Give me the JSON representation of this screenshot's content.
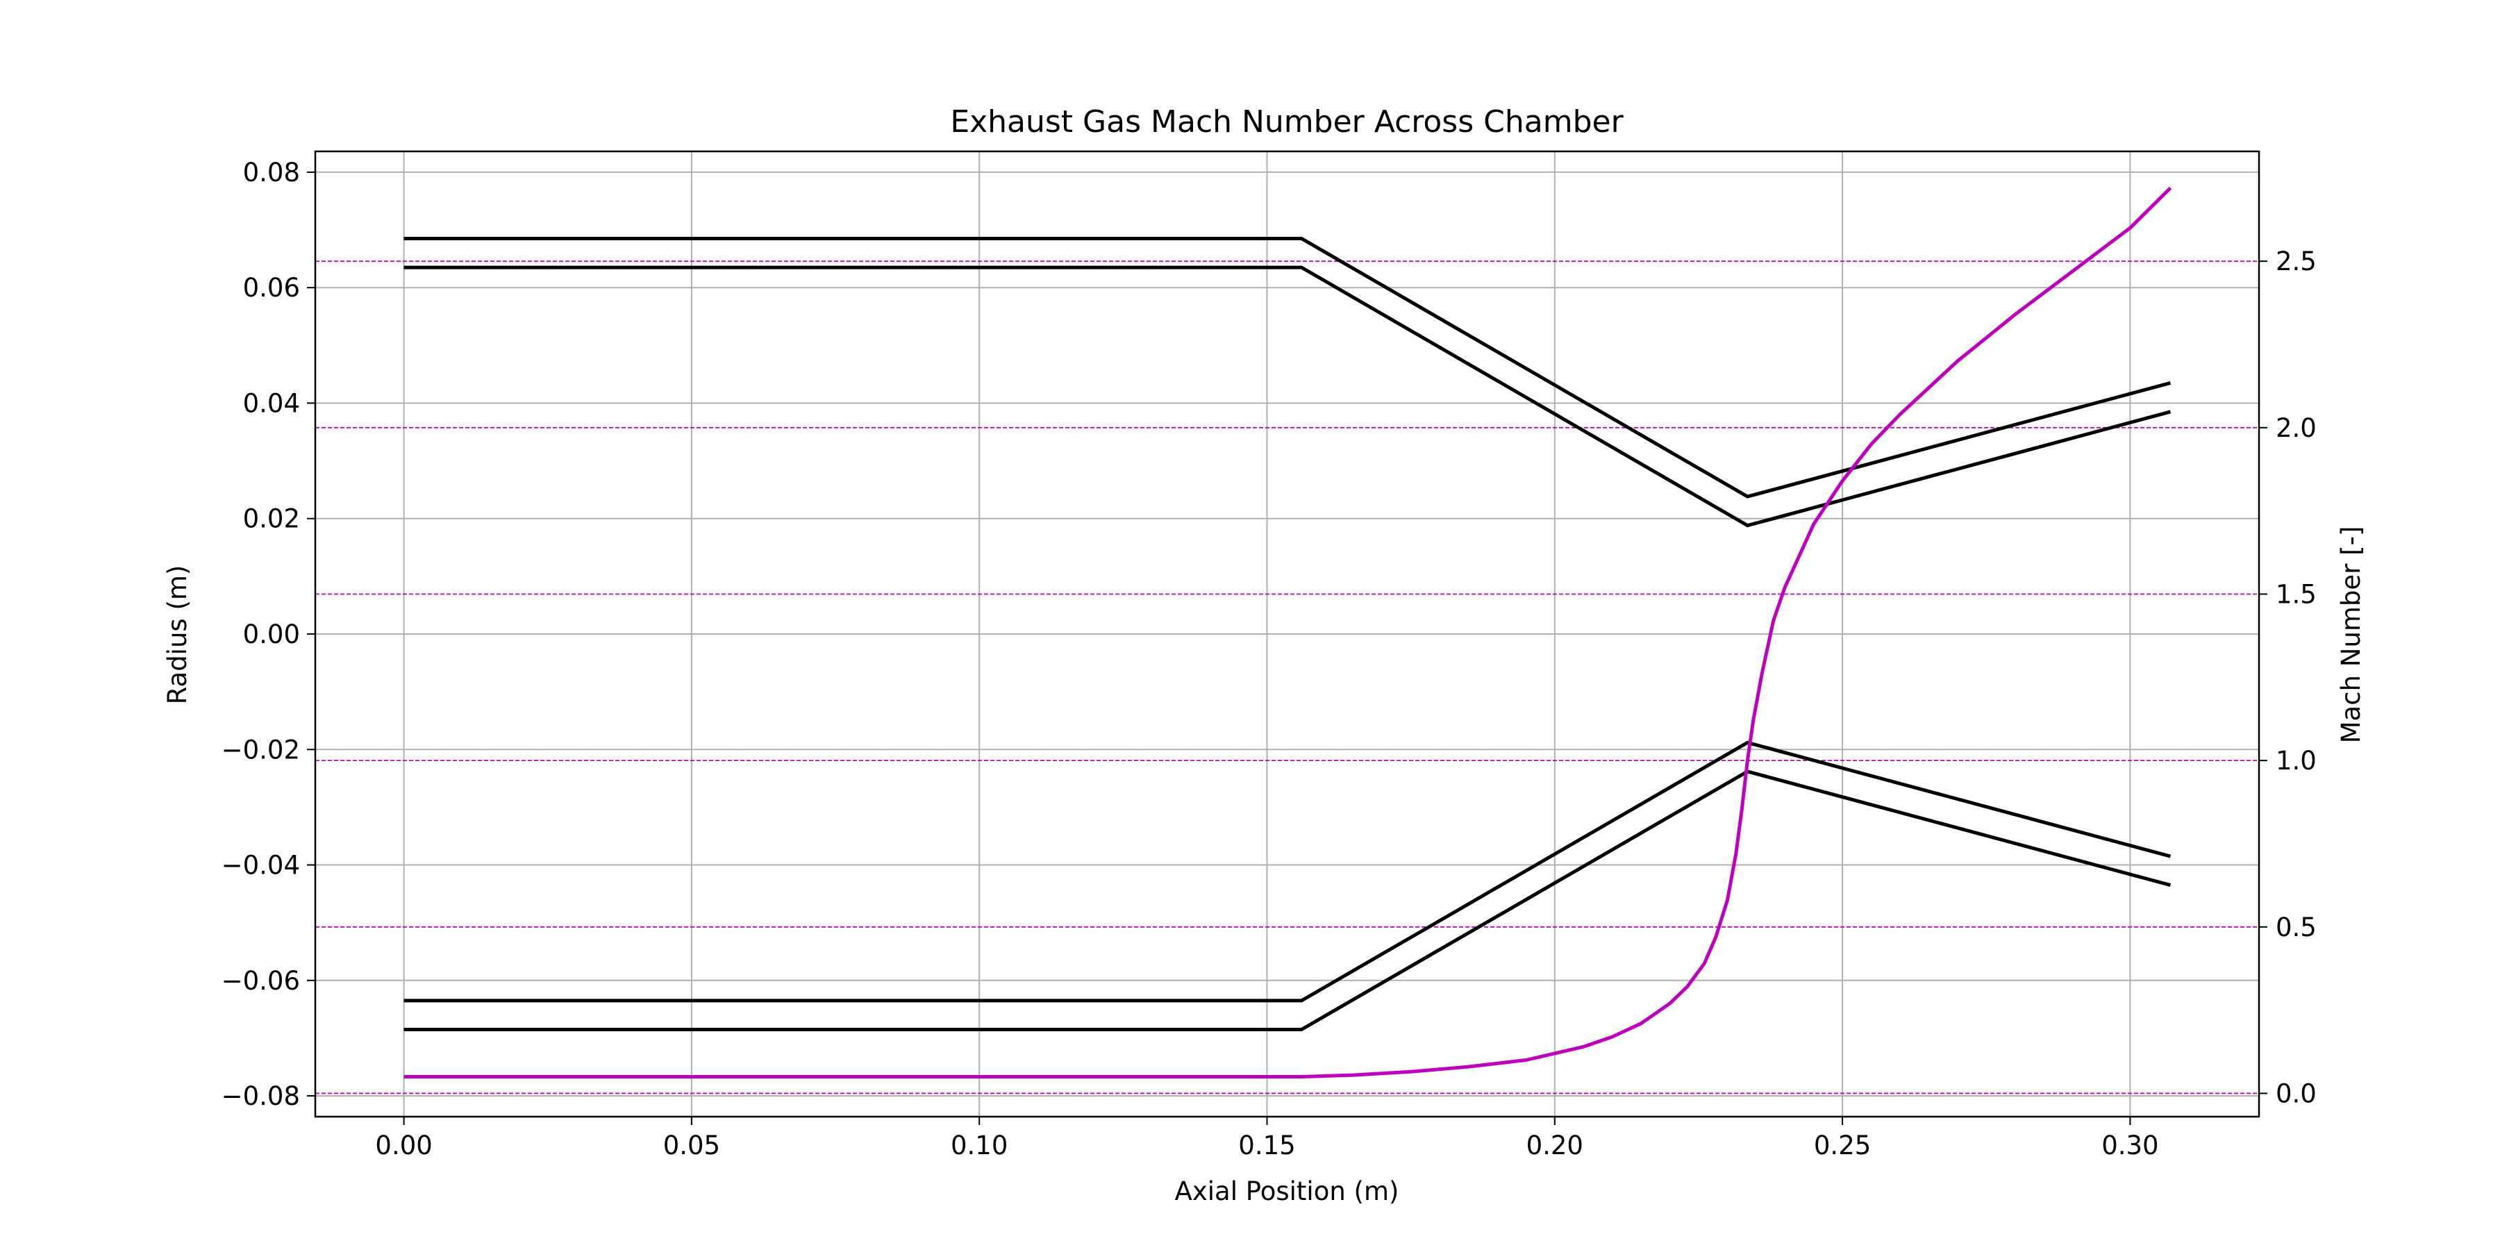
{
  "chart_data": {
    "type": "line",
    "title": "Exhaust Gas Mach Number Across Chamber",
    "xlabel": "Axial Position (m)",
    "ylabel": "Radius (m)",
    "y2label": "Mach Number [-]",
    "xlim": [
      -0.0154,
      0.3224
    ],
    "ylim": [
      -0.0836,
      0.0836
    ],
    "y2lim": [
      -0.07,
      2.83
    ],
    "x_ticks": [
      0.0,
      0.05,
      0.1,
      0.15,
      0.2,
      0.25,
      0.3
    ],
    "x_tick_labels": [
      "0.00",
      "0.05",
      "0.10",
      "0.15",
      "0.20",
      "0.25",
      "0.30"
    ],
    "y_ticks": [
      -0.08,
      -0.06,
      -0.04,
      -0.02,
      0.0,
      0.02,
      0.04,
      0.06,
      0.08
    ],
    "y_tick_labels": [
      "−0.08",
      "−0.06",
      "−0.04",
      "−0.02",
      "0.00",
      "0.02",
      "0.04",
      "0.06",
      "0.08"
    ],
    "y2_ticks": [
      0.0,
      0.5,
      1.0,
      1.5,
      2.0,
      2.5
    ],
    "y2_tick_labels": [
      "0.0",
      "0.5",
      "1.0",
      "1.5",
      "2.0",
      "2.5"
    ],
    "grid": true,
    "colors": {
      "wall": "#000000",
      "mach": "#bf00bf",
      "grid": "#b0b0b0"
    },
    "wall_series": [
      {
        "x": [
          0.0,
          0.156,
          0.2335,
          0.307
        ],
        "y": [
          0.0685,
          0.0685,
          0.0238,
          0.0435
        ]
      },
      {
        "x": [
          0.0,
          0.156,
          0.2335,
          0.307
        ],
        "y": [
          0.0635,
          0.0635,
          0.0188,
          0.0385
        ]
      },
      {
        "x": [
          0.0,
          0.156,
          0.2335,
          0.307
        ],
        "y": [
          -0.0635,
          -0.0635,
          -0.0188,
          -0.0385
        ]
      },
      {
        "x": [
          0.0,
          0.156,
          0.2335,
          0.307
        ],
        "y": [
          -0.0685,
          -0.0685,
          -0.0238,
          -0.0435
        ]
      }
    ],
    "mach_series": {
      "x": [
        0.0,
        0.05,
        0.1,
        0.156,
        0.165,
        0.175,
        0.185,
        0.195,
        0.2,
        0.205,
        0.21,
        0.215,
        0.22,
        0.223,
        0.226,
        0.228,
        0.23,
        0.2315,
        0.2325,
        0.2335,
        0.2345,
        0.236,
        0.238,
        0.24,
        0.245,
        0.25,
        0.255,
        0.26,
        0.27,
        0.28,
        0.29,
        0.3,
        0.307
      ],
      "y": [
        0.05,
        0.05,
        0.05,
        0.05,
        0.055,
        0.065,
        0.08,
        0.1,
        0.12,
        0.14,
        0.17,
        0.21,
        0.27,
        0.32,
        0.39,
        0.47,
        0.58,
        0.72,
        0.85,
        1.0,
        1.12,
        1.26,
        1.42,
        1.52,
        1.71,
        1.84,
        1.95,
        2.04,
        2.2,
        2.34,
        2.47,
        2.6,
        2.72
      ]
    },
    "y2_reference_lines": [
      0.0,
      0.5,
      1.0,
      1.5,
      2.0,
      2.5
    ]
  }
}
